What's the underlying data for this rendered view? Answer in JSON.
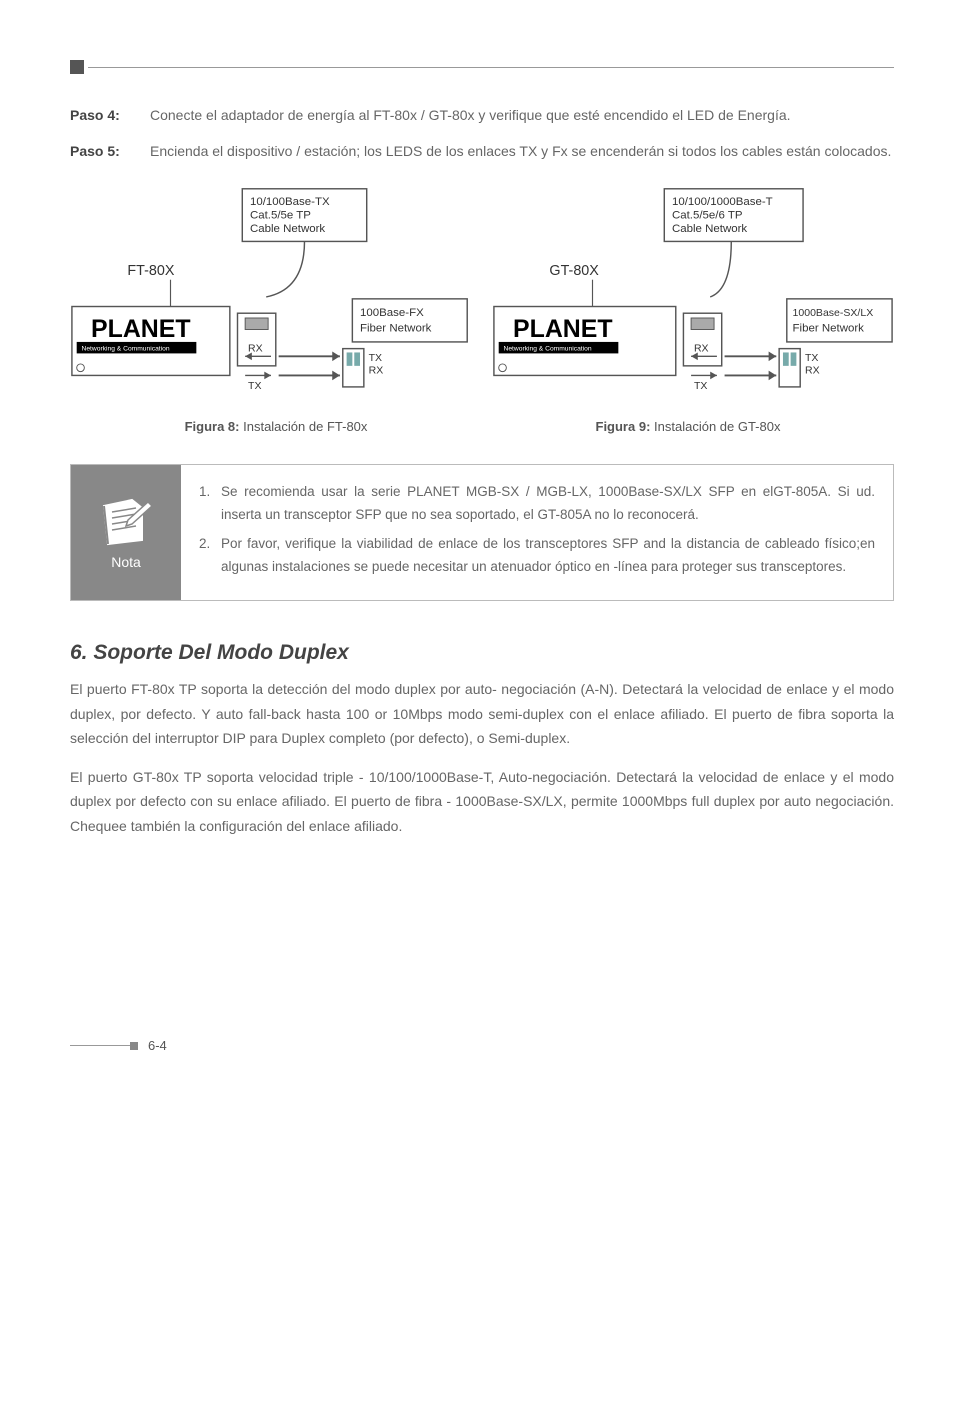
{
  "steps": [
    {
      "label": "Paso 4:",
      "text": "Conecte el adaptador de energía al FT-80x / GT-80x y verifique que esté encendido el LED de Energía."
    },
    {
      "label": "Paso 5:",
      "text": "Encienda el dispositivo / estación; los LEDS de los enlaces TX y Fx se encenderán si todos los cables están colocados."
    }
  ],
  "diagram_left": {
    "model": "FT-80X",
    "top_box": "10/100Base-TX\nCat.5/5e TP\nCable Network",
    "right_box": "100Base-FX\nFiber Network",
    "brand": "PLANET",
    "brand_sub": "Networking & Communication",
    "rx": "RX",
    "tx": "TX",
    "tx2": "TX",
    "rx2": "RX"
  },
  "diagram_right": {
    "model": "GT-80X",
    "top_box": "10/100/1000Base-T\nCat.5/5e/6 TP\nCable Network",
    "right_box": "1000Base-SX/LX\nFiber Network",
    "brand": "PLANET",
    "brand_sub": "Networking & Communication",
    "rx": "RX",
    "tx": "TX",
    "tx2": "TX",
    "rx2": "RX"
  },
  "caption_left_bold": "Figura 8:",
  "caption_left_text": " Instalación de FT-80x",
  "caption_right_bold": "Figura 9:",
  "caption_right_text": " Instalación de GT-80x",
  "note_label": "Nota",
  "note_items": [
    {
      "num": "1.",
      "text": "Se recomienda usar la serie  PLANET MGB-SX / MGB-LX, 1000Base-SX/LX SFP en elGT-805A. Si ud. inserta  un transceptor  SFP que no sea soportado, el GT-805A no lo reconocerá."
    },
    {
      "num": "2.",
      "text": "Por favor, verifique la viabilidad de enlace de los  transceptores SFP and la distancia de cableado físico;en algunas instalaciones se puede necesitar un atenuador óptico en -línea para proteger sus transceptores."
    }
  ],
  "section_title": "6.  Soporte Del Modo Duplex",
  "body_paragraphs": [
    "El puerto FT-80x TP soporta la detección del modo duplex por auto- negociación (A-N). Detectará la velocidad de enlace y el modo duplex, por defecto. Y auto fall-back hasta 100 or 10Mbps modo semi-duplex con el enlace afiliado. El puerto de fibra soporta la selección del interruptor DIP para Duplex completo (por defecto), o Semi-duplex.",
    "El puerto GT-80x TP soporta  velocidad  triple - 10/100/1000Base-T, Auto-negociación. Detectará la velocidad de enlace y el modo duplex por defecto con su enlace afiliado. El puerto de fibra - 1000Base-SX/LX, permite 1000Mbps full duplex por auto negociación. Chequee también la configuración del enlace afiliado."
  ],
  "page_number": "6-4"
}
